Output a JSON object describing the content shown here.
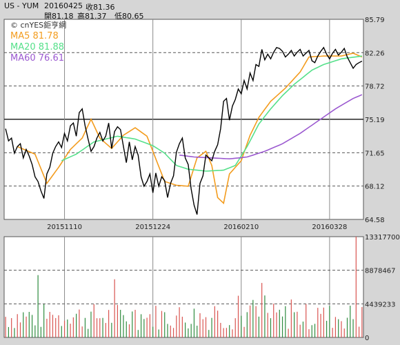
{
  "header": {
    "symbol": "US - YUM",
    "date": "20160425",
    "close_label": "收81.36",
    "open_label": "開81.18",
    "high_label": "高81.37",
    "low_label": "低80.65"
  },
  "colors": {
    "price": "#000000",
    "ma5": "#f39c1e",
    "ma20": "#55e08a",
    "ma60": "#9b59d0",
    "vol_up": "#d9534f",
    "vol_down": "#2e8b3e",
    "grid": "#8a8a8a",
    "panel_bg": "#ffffff",
    "page_bg": "#d6d6d6"
  },
  "chart_data": [
    {
      "type": "line",
      "title": "US - YUM",
      "watermark": "© cnYES鉅亨網",
      "ylim": [
        64.58,
        85.79
      ],
      "yticks": [
        "85.79",
        "82.26",
        "78.72",
        "75.19",
        "71.65",
        "68.12",
        "64.58"
      ],
      "xtick_labels": [
        "20151110",
        "20151224",
        "20160210",
        "20160328"
      ],
      "xtick_index": [
        20,
        50,
        80,
        110
      ],
      "n_points": 122,
      "reference_line": 75.19,
      "series": [
        {
          "name": "MA5",
          "label": "MA5 81.78",
          "color_key": "ma5",
          "start": 4,
          "anchors": [
            [
              4,
              72.3
            ],
            [
              10,
              71.5
            ],
            [
              14,
              68.4
            ],
            [
              18,
              70.1
            ],
            [
              22,
              72.0
            ],
            [
              26,
              73.2
            ],
            [
              29,
              75.2
            ],
            [
              32,
              73.2
            ],
            [
              36,
              72.1
            ],
            [
              40,
              73.5
            ],
            [
              44,
              74.3
            ],
            [
              48,
              73.4
            ],
            [
              50,
              71.8
            ],
            [
              54,
              68.6
            ],
            [
              58,
              68.2
            ],
            [
              62,
              68.1
            ],
            [
              65,
              71.1
            ],
            [
              68,
              71.8
            ],
            [
              70,
              70.3
            ],
            [
              72,
              66.9
            ],
            [
              74,
              66.3
            ],
            [
              76,
              69.4
            ],
            [
              80,
              70.8
            ],
            [
              83,
              73.5
            ],
            [
              86,
              75.4
            ],
            [
              90,
              77.1
            ],
            [
              95,
              78.5
            ],
            [
              100,
              80.2
            ],
            [
              103,
              81.8
            ],
            [
              108,
              81.9
            ],
            [
              114,
              81.9
            ],
            [
              118,
              82.2
            ],
            [
              121,
              81.8
            ]
          ]
        },
        {
          "name": "MA20",
          "label": "MA20 81.88",
          "color_key": "ma20",
          "start": 19,
          "anchors": [
            [
              19,
              70.8
            ],
            [
              24,
              71.5
            ],
            [
              30,
              72.8
            ],
            [
              34,
              73.1
            ],
            [
              38,
              73.4
            ],
            [
              44,
              73.1
            ],
            [
              50,
              72.4
            ],
            [
              54,
              71.6
            ],
            [
              58,
              70.3
            ],
            [
              62,
              69.9
            ],
            [
              68,
              69.7
            ],
            [
              74,
              69.8
            ],
            [
              78,
              70.3
            ],
            [
              82,
              72.3
            ],
            [
              86,
              74.7
            ],
            [
              90,
              76.3
            ],
            [
              94,
              77.7
            ],
            [
              98,
              78.9
            ],
            [
              104,
              80.4
            ],
            [
              108,
              81.0
            ],
            [
              114,
              81.6
            ],
            [
              121,
              81.9
            ]
          ]
        },
        {
          "name": "MA60",
          "label": "MA60 76.61",
          "color_key": "ma60",
          "start": 59,
          "anchors": [
            [
              59,
              71.4
            ],
            [
              64,
              71.2
            ],
            [
              70,
              71.1
            ],
            [
              76,
              71.0
            ],
            [
              82,
              71.2
            ],
            [
              88,
              71.8
            ],
            [
              94,
              72.6
            ],
            [
              100,
              73.7
            ],
            [
              106,
              75.0
            ],
            [
              112,
              76.3
            ],
            [
              118,
              77.4
            ],
            [
              121,
              77.8
            ]
          ]
        }
      ],
      "price": {
        "name": "Close",
        "anchors": [
          [
            0,
            74.2
          ],
          [
            1,
            72.9
          ],
          [
            2,
            73.2
          ],
          [
            3,
            71.6
          ],
          [
            4,
            72.3
          ],
          [
            5,
            72.6
          ],
          [
            6,
            71.1
          ],
          [
            7,
            72.0
          ],
          [
            8,
            71.3
          ],
          [
            9,
            70.4
          ],
          [
            10,
            69.1
          ],
          [
            11,
            68.6
          ],
          [
            12,
            67.6
          ],
          [
            13,
            66.8
          ],
          [
            14,
            69.4
          ],
          [
            15,
            70.1
          ],
          [
            16,
            71.6
          ],
          [
            17,
            72.3
          ],
          [
            18,
            72.8
          ],
          [
            19,
            72.2
          ],
          [
            20,
            73.7
          ],
          [
            21,
            72.9
          ],
          [
            22,
            74.5
          ],
          [
            23,
            74.8
          ],
          [
            24,
            73.4
          ],
          [
            25,
            75.9
          ],
          [
            26,
            76.3
          ],
          [
            27,
            74.5
          ],
          [
            28,
            73.1
          ],
          [
            29,
            71.8
          ],
          [
            30,
            72.3
          ],
          [
            31,
            73.2
          ],
          [
            32,
            73.8
          ],
          [
            33,
            72.9
          ],
          [
            34,
            73.4
          ],
          [
            35,
            74.8
          ],
          [
            36,
            72.1
          ],
          [
            37,
            73.9
          ],
          [
            38,
            74.4
          ],
          [
            39,
            74.1
          ],
          [
            40,
            72.3
          ],
          [
            41,
            70.6
          ],
          [
            42,
            72.8
          ],
          [
            43,
            70.9
          ],
          [
            44,
            72.3
          ],
          [
            45,
            71.4
          ],
          [
            46,
            69.1
          ],
          [
            47,
            68.1
          ],
          [
            48,
            68.6
          ],
          [
            49,
            69.4
          ],
          [
            50,
            67.4
          ],
          [
            51,
            69.5
          ],
          [
            52,
            68.1
          ],
          [
            53,
            69.1
          ],
          [
            54,
            68.7
          ],
          [
            55,
            66.9
          ],
          [
            56,
            68.4
          ],
          [
            57,
            69.2
          ],
          [
            58,
            71.7
          ],
          [
            59,
            72.6
          ],
          [
            60,
            73.2
          ],
          [
            61,
            71.1
          ],
          [
            62,
            70.4
          ],
          [
            63,
            67.8
          ],
          [
            64,
            66.1
          ],
          [
            65,
            65.1
          ],
          [
            66,
            68.4
          ],
          [
            67,
            69.2
          ],
          [
            68,
            71.4
          ],
          [
            69,
            71.1
          ],
          [
            70,
            70.8
          ],
          [
            71,
            71.8
          ],
          [
            72,
            72.5
          ],
          [
            73,
            74.2
          ],
          [
            74,
            77.1
          ],
          [
            75,
            77.4
          ],
          [
            76,
            75.1
          ],
          [
            77,
            76.6
          ],
          [
            78,
            77.3
          ],
          [
            79,
            78.4
          ],
          [
            80,
            77.9
          ],
          [
            81,
            79.3
          ],
          [
            82,
            78.4
          ],
          [
            83,
            80.1
          ],
          [
            84,
            79.3
          ],
          [
            85,
            81.0
          ],
          [
            86,
            80.8
          ],
          [
            87,
            82.6
          ],
          [
            88,
            81.5
          ],
          [
            89,
            82.1
          ],
          [
            90,
            81.6
          ],
          [
            91,
            82.3
          ],
          [
            92,
            82.8
          ],
          [
            93,
            82.7
          ],
          [
            94,
            82.4
          ],
          [
            95,
            81.8
          ],
          [
            96,
            82.1
          ],
          [
            97,
            82.5
          ],
          [
            98,
            81.9
          ],
          [
            99,
            82.3
          ],
          [
            100,
            82.6
          ],
          [
            101,
            81.9
          ],
          [
            102,
            82.2
          ],
          [
            103,
            82.5
          ],
          [
            104,
            81.4
          ],
          [
            105,
            81.2
          ],
          [
            106,
            81.9
          ],
          [
            107,
            82.4
          ],
          [
            108,
            82.8
          ],
          [
            109,
            82.1
          ],
          [
            110,
            81.6
          ],
          [
            111,
            82.2
          ],
          [
            112,
            82.6
          ],
          [
            113,
            82.0
          ],
          [
            114,
            82.3
          ],
          [
            115,
            82.7
          ],
          [
            116,
            81.8
          ],
          [
            117,
            81.2
          ],
          [
            118,
            80.6
          ],
          [
            119,
            81.0
          ],
          [
            120,
            81.2
          ],
          [
            121,
            81.36
          ]
        ]
      }
    },
    {
      "type": "bar",
      "title": "Volume",
      "ylim": [
        0,
        13317700
      ],
      "yticks": [
        "13317700",
        "8878467",
        "4439233",
        "0"
      ],
      "spike_index": 119,
      "spike_value": 13317700
    }
  ]
}
